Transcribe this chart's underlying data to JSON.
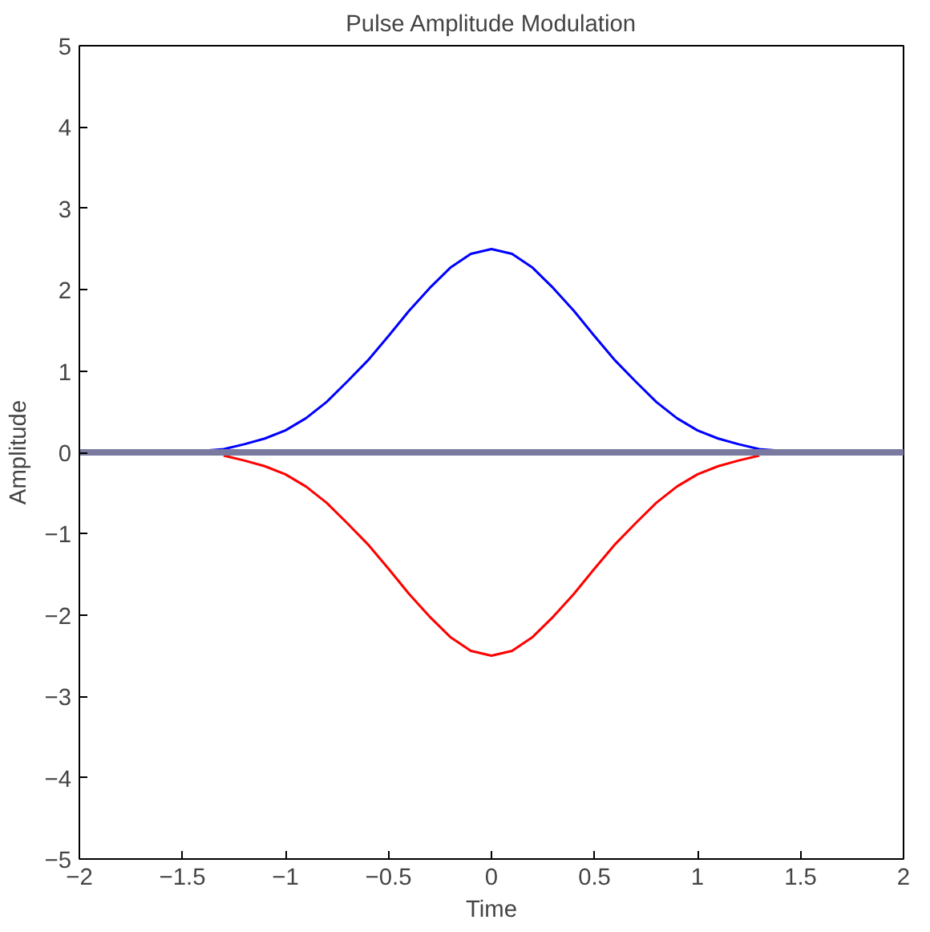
{
  "chart_data": {
    "type": "line",
    "title": "Pulse Amplitude Modulation",
    "xlabel": "Time",
    "ylabel": "Amplitude",
    "xlim": [
      -2,
      2
    ],
    "xticks": [
      -2,
      -1.5,
      -1,
      -0.5,
      0,
      0.5,
      1,
      1.5,
      2
    ],
    "ylim": [
      -5,
      5
    ],
    "yticks": [
      -5,
      -4,
      -3,
      -2,
      -1,
      0,
      1,
      2,
      3,
      4,
      5
    ],
    "grid": false,
    "series": [
      {
        "color": "#0000ff",
        "x": [
          -1.4,
          -1.3,
          -1.2,
          -1.1,
          -1.0,
          -0.9,
          -0.8,
          -0.7,
          -0.6,
          -0.5,
          -0.4,
          -0.3,
          -0.2,
          -0.1,
          0,
          0.1,
          0.2,
          0.3,
          0.4,
          0.5,
          0.6,
          0.7,
          0.8,
          0.9,
          1.0,
          1.1,
          1.2,
          1.3,
          1.4
        ],
        "values": [
          0.02,
          0.04,
          0.1,
          0.17,
          0.27,
          0.42,
          0.62,
          0.87,
          1.13,
          1.43,
          1.74,
          2.02,
          2.27,
          2.44,
          2.5,
          2.44,
          2.27,
          2.02,
          1.74,
          1.43,
          1.13,
          0.87,
          0.62,
          0.42,
          0.27,
          0.17,
          0.1,
          0.04,
          0.02
        ]
      },
      {
        "color": "#ff0000",
        "x": [
          -1.3,
          -1.2,
          -1.1,
          -1.0,
          -0.9,
          -0.8,
          -0.7,
          -0.6,
          -0.5,
          -0.4,
          -0.3,
          -0.2,
          -0.1,
          0,
          0.1,
          0.2,
          0.3,
          0.4,
          0.5,
          0.6,
          0.7,
          0.8,
          0.9,
          1.0,
          1.1,
          1.2,
          1.3
        ],
        "values": [
          -0.04,
          -0.1,
          -0.17,
          -0.27,
          -0.42,
          -0.62,
          -0.87,
          -1.13,
          -1.43,
          -1.74,
          -2.02,
          -2.27,
          -2.44,
          -2.5,
          -2.44,
          -2.27,
          -2.02,
          -1.74,
          -1.43,
          -1.13,
          -0.87,
          -0.62,
          -0.42,
          -0.27,
          -0.17,
          -0.1,
          -0.04
        ]
      },
      {
        "color": "#7a7aa0",
        "x": [
          -2,
          2
        ],
        "values": [
          0,
          0
        ]
      }
    ]
  }
}
